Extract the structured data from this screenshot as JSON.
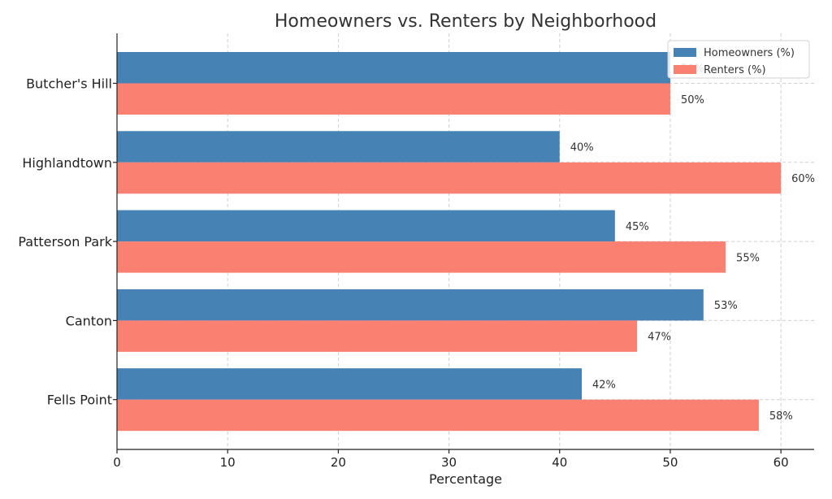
{
  "chart_data": {
    "type": "bar",
    "orientation": "horizontal",
    "title": "Homeowners vs. Renters by Neighborhood",
    "xlabel": "Percentage",
    "ylabel": "",
    "xlim": [
      0,
      63
    ],
    "xticks": [
      0,
      10,
      20,
      30,
      40,
      50,
      60
    ],
    "grid": true,
    "legend_position": "top-right",
    "categories": [
      "Butcher's Hill",
      "Highlandtown",
      "Patterson Park",
      "Canton",
      "Fells Point"
    ],
    "series": [
      {
        "name": "Homeowners (%)",
        "color": "#4682b4",
        "values": [
          50,
          40,
          45,
          53,
          42
        ],
        "labels": [
          "50%",
          "40%",
          "45%",
          "53%",
          "42%"
        ]
      },
      {
        "name": "Renters (%)",
        "color": "#fa8072",
        "values": [
          50,
          60,
          55,
          47,
          58
        ],
        "labels": [
          "50%",
          "60%",
          "55%",
          "47%",
          "58%"
        ]
      }
    ]
  }
}
